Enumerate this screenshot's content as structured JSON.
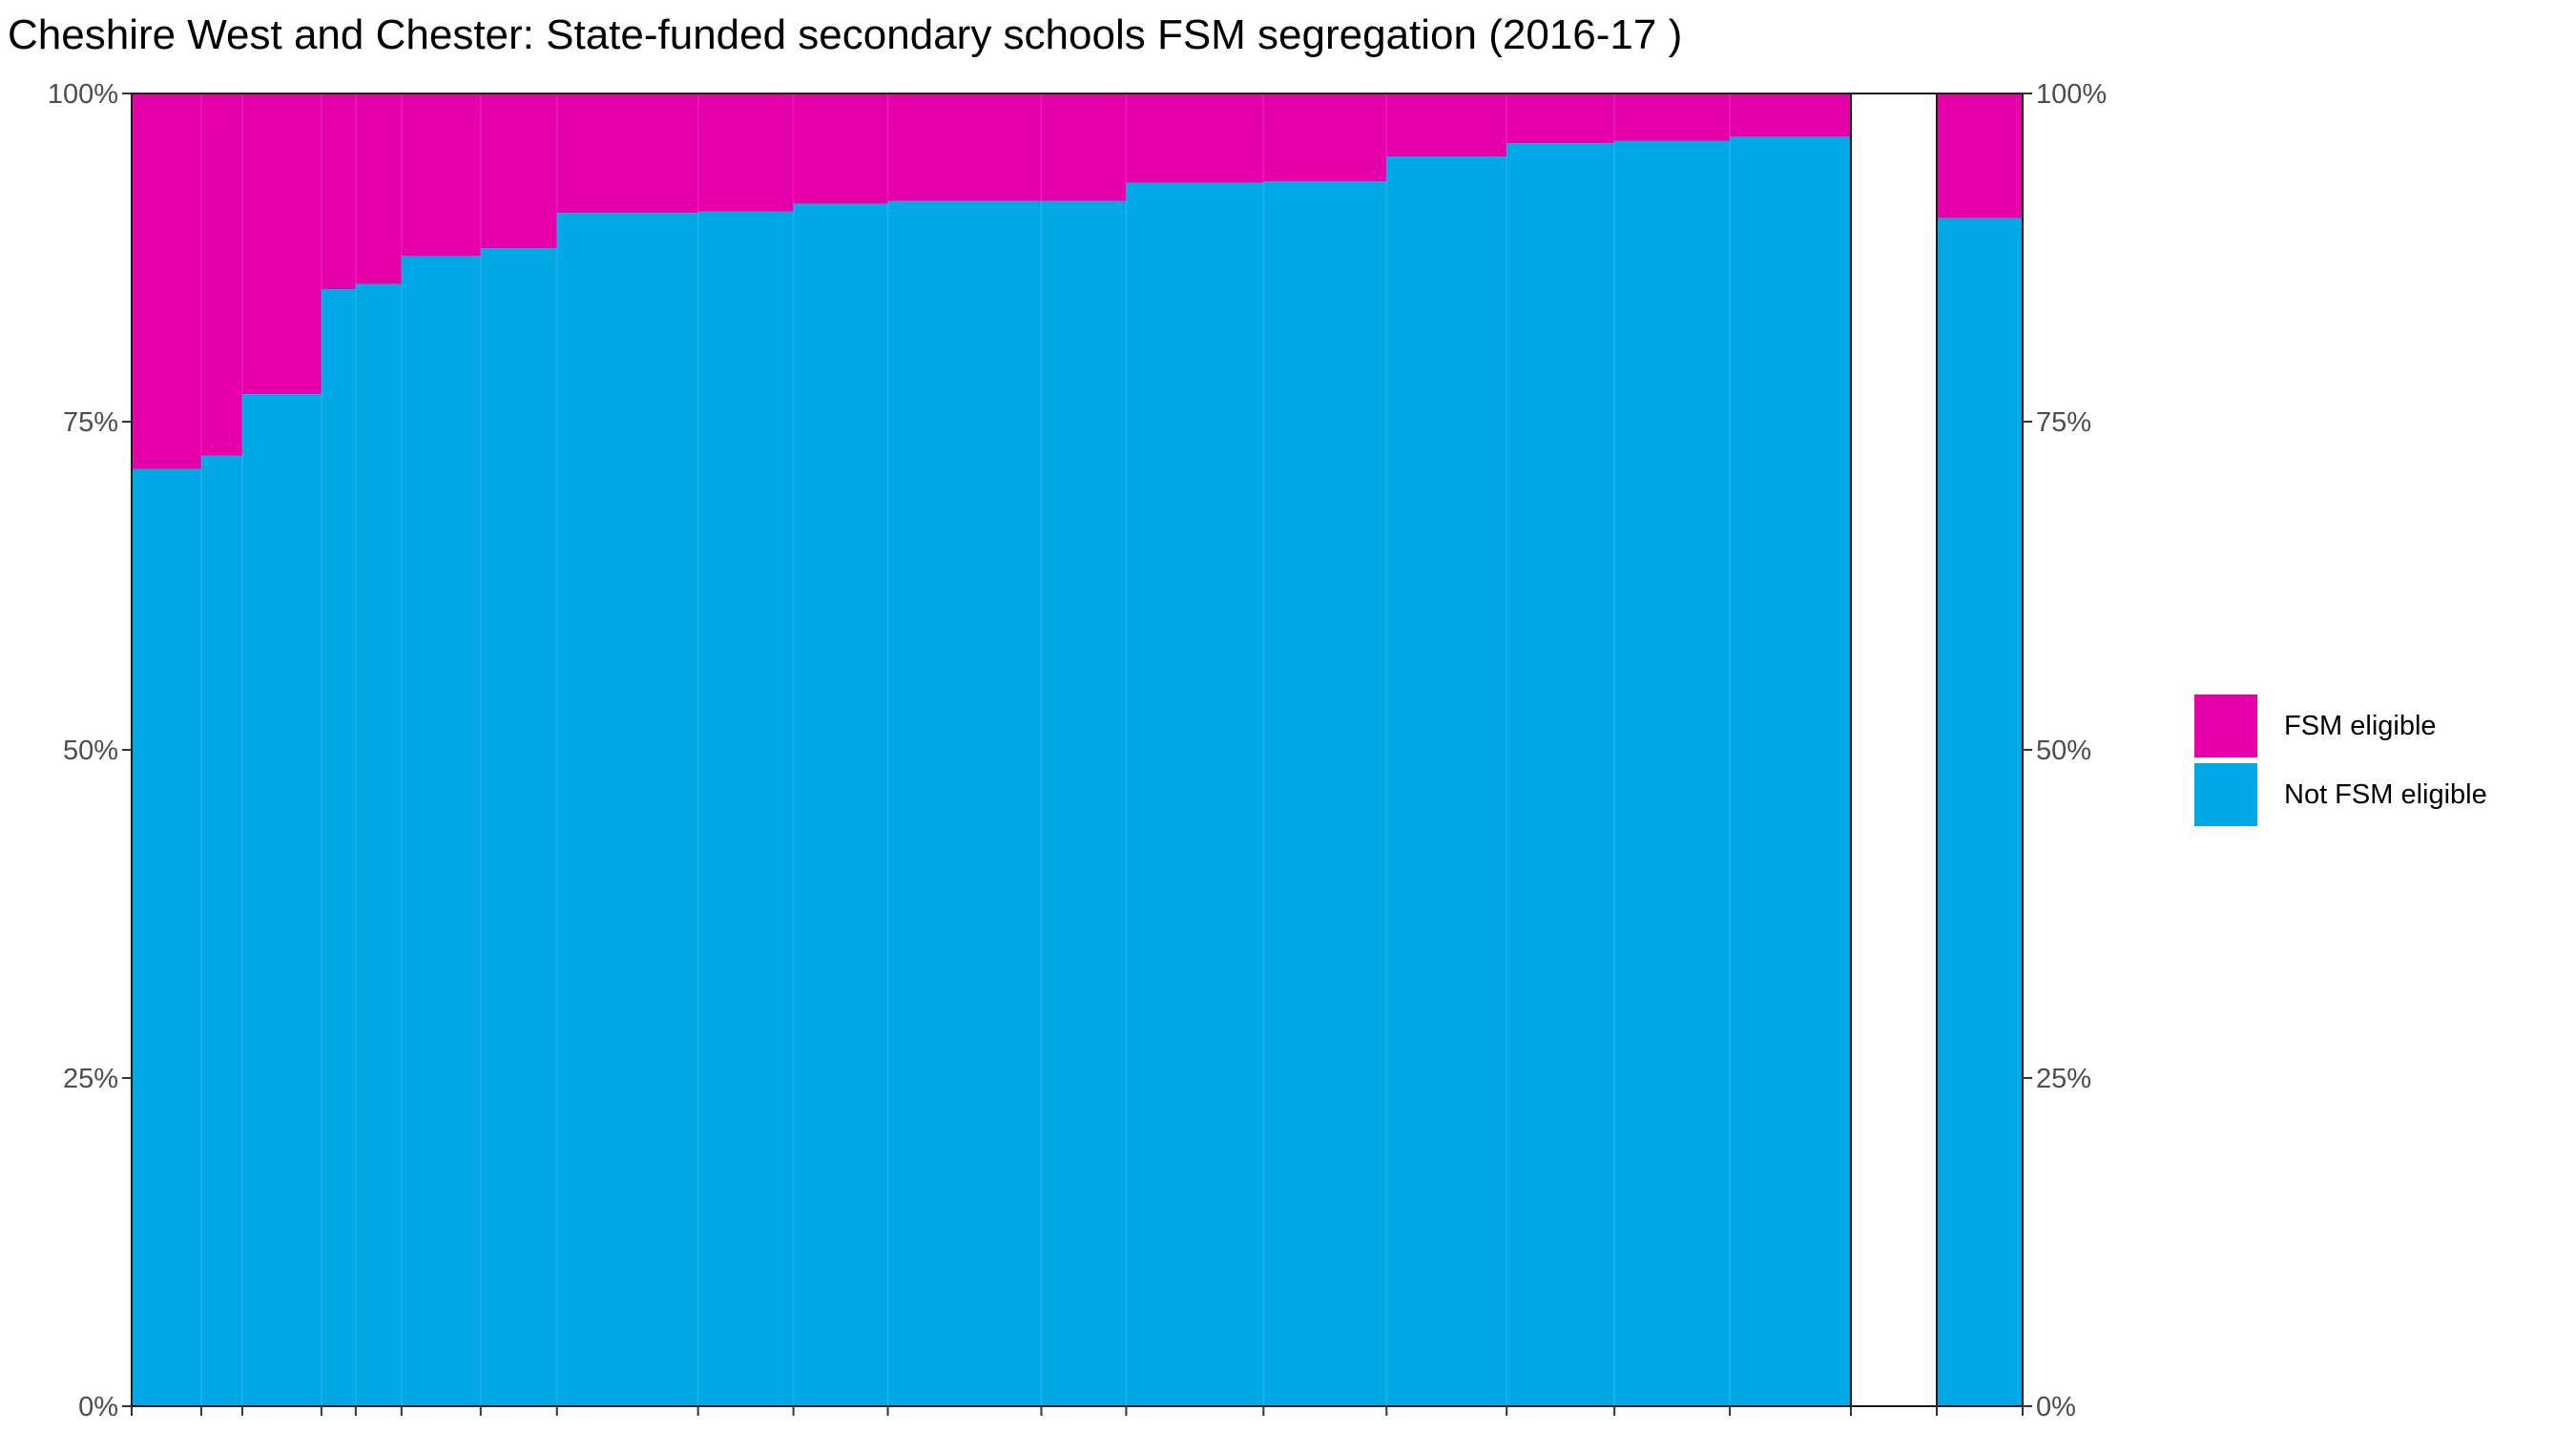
{
  "chart_data": {
    "type": "bar",
    "title": "Cheshire West and Chester: State-funded secondary schools FSM segregation (2016-17 )",
    "xlabel": "",
    "ylabel": "",
    "ylim": [
      0,
      1
    ],
    "yticks": [
      "0%",
      "25%",
      "50%",
      "75%",
      "100%"
    ],
    "grid": false,
    "legend_position": "right",
    "colors": {
      "fsm": "#e600aa",
      "not_fsm": "#00a9e6"
    },
    "series": [
      {
        "name": "FSM eligible",
        "color": "#e600aa"
      },
      {
        "name": "Not FSM eligible",
        "color": "#00a9e6"
      }
    ],
    "schools": [
      {
        "relative_pupils": 73,
        "not_fsm_share": 0.714
      },
      {
        "relative_pupils": 43,
        "not_fsm_share": 0.724
      },
      {
        "relative_pupils": 83,
        "not_fsm_share": 0.771
      },
      {
        "relative_pupils": 36,
        "not_fsm_share": 0.851
      },
      {
        "relative_pupils": 48,
        "not_fsm_share": 0.855
      },
      {
        "relative_pupils": 83,
        "not_fsm_share": 0.876
      },
      {
        "relative_pupils": 80,
        "not_fsm_share": 0.882
      },
      {
        "relative_pupils": 148,
        "not_fsm_share": 0.909
      },
      {
        "relative_pupils": 100,
        "not_fsm_share": 0.91
      },
      {
        "relative_pupils": 99,
        "not_fsm_share": 0.916
      },
      {
        "relative_pupils": 161,
        "not_fsm_share": 0.918
      },
      {
        "relative_pupils": 89,
        "not_fsm_share": 0.918
      },
      {
        "relative_pupils": 144,
        "not_fsm_share": 0.932
      },
      {
        "relative_pupils": 129,
        "not_fsm_share": 0.933
      },
      {
        "relative_pupils": 126,
        "not_fsm_share": 0.952
      },
      {
        "relative_pupils": 113,
        "not_fsm_share": 0.962
      },
      {
        "relative_pupils": 121,
        "not_fsm_share": 0.964
      },
      {
        "relative_pupils": 127,
        "not_fsm_share": 0.967
      }
    ],
    "total": {
      "not_fsm_share": 0.905
    }
  },
  "legend": {
    "fsm_label": "FSM eligible",
    "not_fsm_label": "Not FSM eligible"
  }
}
